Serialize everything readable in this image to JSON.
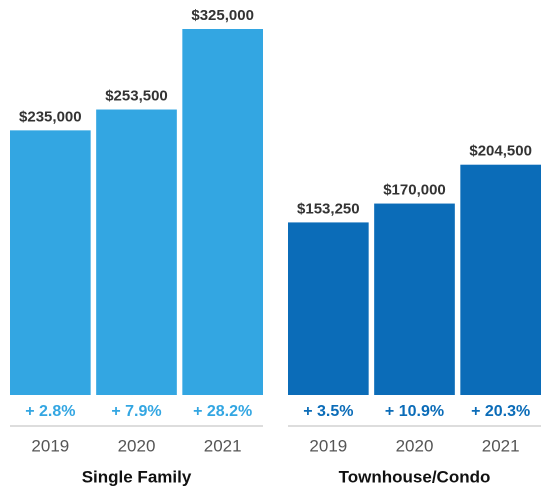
{
  "chart_data": [
    {
      "type": "bar",
      "title": "Single Family",
      "categories": [
        "2019",
        "2020",
        "2021"
      ],
      "values": [
        235000,
        253500,
        325000
      ],
      "value_labels": [
        "$235,000",
        "$253,500",
        "$325,000"
      ],
      "annotations": [
        "+ 2.8%",
        "+ 7.9%",
        "+ 28.2%"
      ],
      "color": "#33a6e2"
    },
    {
      "type": "bar",
      "title": "Townhouse/Condo",
      "categories": [
        "2019",
        "2020",
        "2021"
      ],
      "values": [
        153250,
        170000,
        204500
      ],
      "value_labels": [
        "$153,250",
        "$170,000",
        "$204,500"
      ],
      "annotations": [
        "+ 3.5%",
        "+ 10.9%",
        "+ 20.3%"
      ],
      "color": "#0b6cb8"
    }
  ]
}
